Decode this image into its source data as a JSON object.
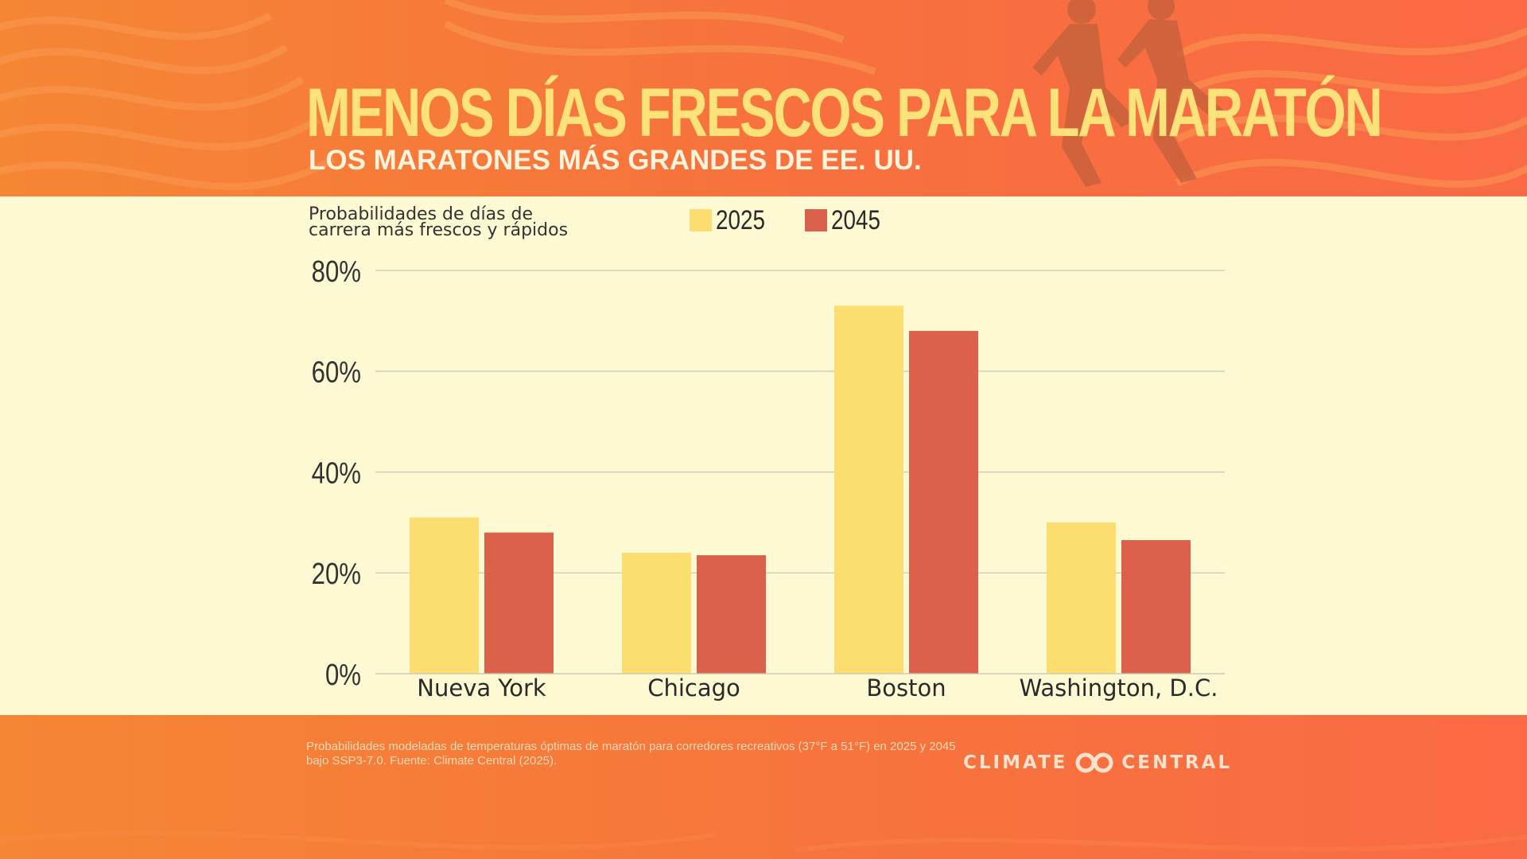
{
  "header": {
    "title": "MENOS DÍAS FRESCOS PARA LA MARATÓN",
    "subtitle": "LOS MARATONES MÁS GRANDES DE EE. UU."
  },
  "chart_data": {
    "type": "bar",
    "ylabel_lines": [
      "Probabilidades de días de",
      "carrera más frescos y rápidos"
    ],
    "categories": [
      "Nueva York",
      "Chicago",
      "Boston",
      "Washington, D.C."
    ],
    "series": [
      {
        "name": "2025",
        "color": "#fbde6f",
        "values": [
          31,
          24,
          73,
          30
        ]
      },
      {
        "name": "2045",
        "color": "#dc614a",
        "values": [
          28,
          23.5,
          68,
          26.5
        ]
      }
    ],
    "ylim": [
      0,
      80
    ],
    "yticks": [
      0,
      20,
      40,
      60,
      80
    ],
    "ytick_labels": [
      "0%",
      "20%",
      "40%",
      "60%",
      "80%"
    ],
    "grid": true,
    "legend_position": "top"
  },
  "footer": {
    "note": "Probabilidades modeladas de temperaturas óptimas de maratón para corredores recreativos (37°F a 51°F) en 2025 y 2045 bajo SSP3-7.0.  Fuente: Climate Central (2025).",
    "logo_left": "CLIMATE",
    "logo_right": "CENTRAL"
  },
  "colors": {
    "header_orange": "#f58634",
    "title_yellow": "#fde27a",
    "background_cream": "#fdf9d2"
  }
}
